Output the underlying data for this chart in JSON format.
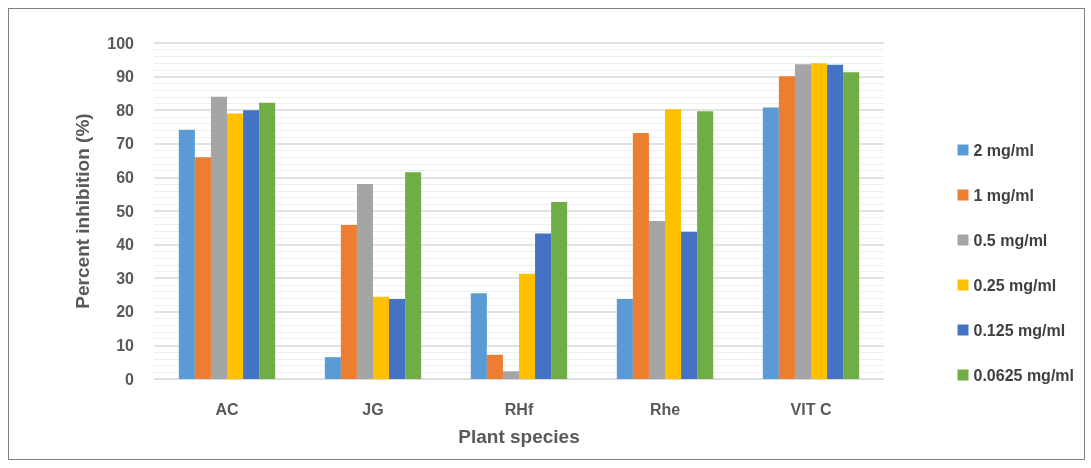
{
  "chart_data": {
    "type": "bar",
    "xlabel": "Plant species",
    "ylabel": "Percent inhibition (%)",
    "categories": [
      "AC",
      "JG",
      "RHf",
      "Rhe",
      "VIT C"
    ],
    "series": [
      {
        "name": "2 mg/ml",
        "color": "#5b9bd5",
        "values": [
          74.2,
          6.5,
          25.5,
          23.8,
          80.8
        ]
      },
      {
        "name": "1 mg/ml",
        "color": "#ed7d31",
        "values": [
          66,
          45.8,
          7.2,
          73.2,
          90.1
        ]
      },
      {
        "name": "0.5 mg/ml",
        "color": "#a5a5a5",
        "values": [
          84,
          58,
          2.3,
          47,
          93.7
        ]
      },
      {
        "name": "0.25 mg/ml",
        "color": "#ffc000",
        "values": [
          79,
          24.5,
          31.3,
          80.3,
          94
        ]
      },
      {
        "name": "0.125 mg/ml",
        "color": "#4472c4",
        "values": [
          80,
          23.8,
          43.3,
          43.8,
          93.5
        ]
      },
      {
        "name": "0.0625 mg/ml",
        "color": "#70ad47",
        "values": [
          82.2,
          61.5,
          52.7,
          79.7,
          91.3
        ]
      }
    ],
    "ylim": [
      0,
      100
    ],
    "yticks": [
      0,
      10,
      20,
      30,
      40,
      50,
      60,
      70,
      80,
      90,
      100
    ],
    "grid": "y",
    "legend": "right"
  }
}
